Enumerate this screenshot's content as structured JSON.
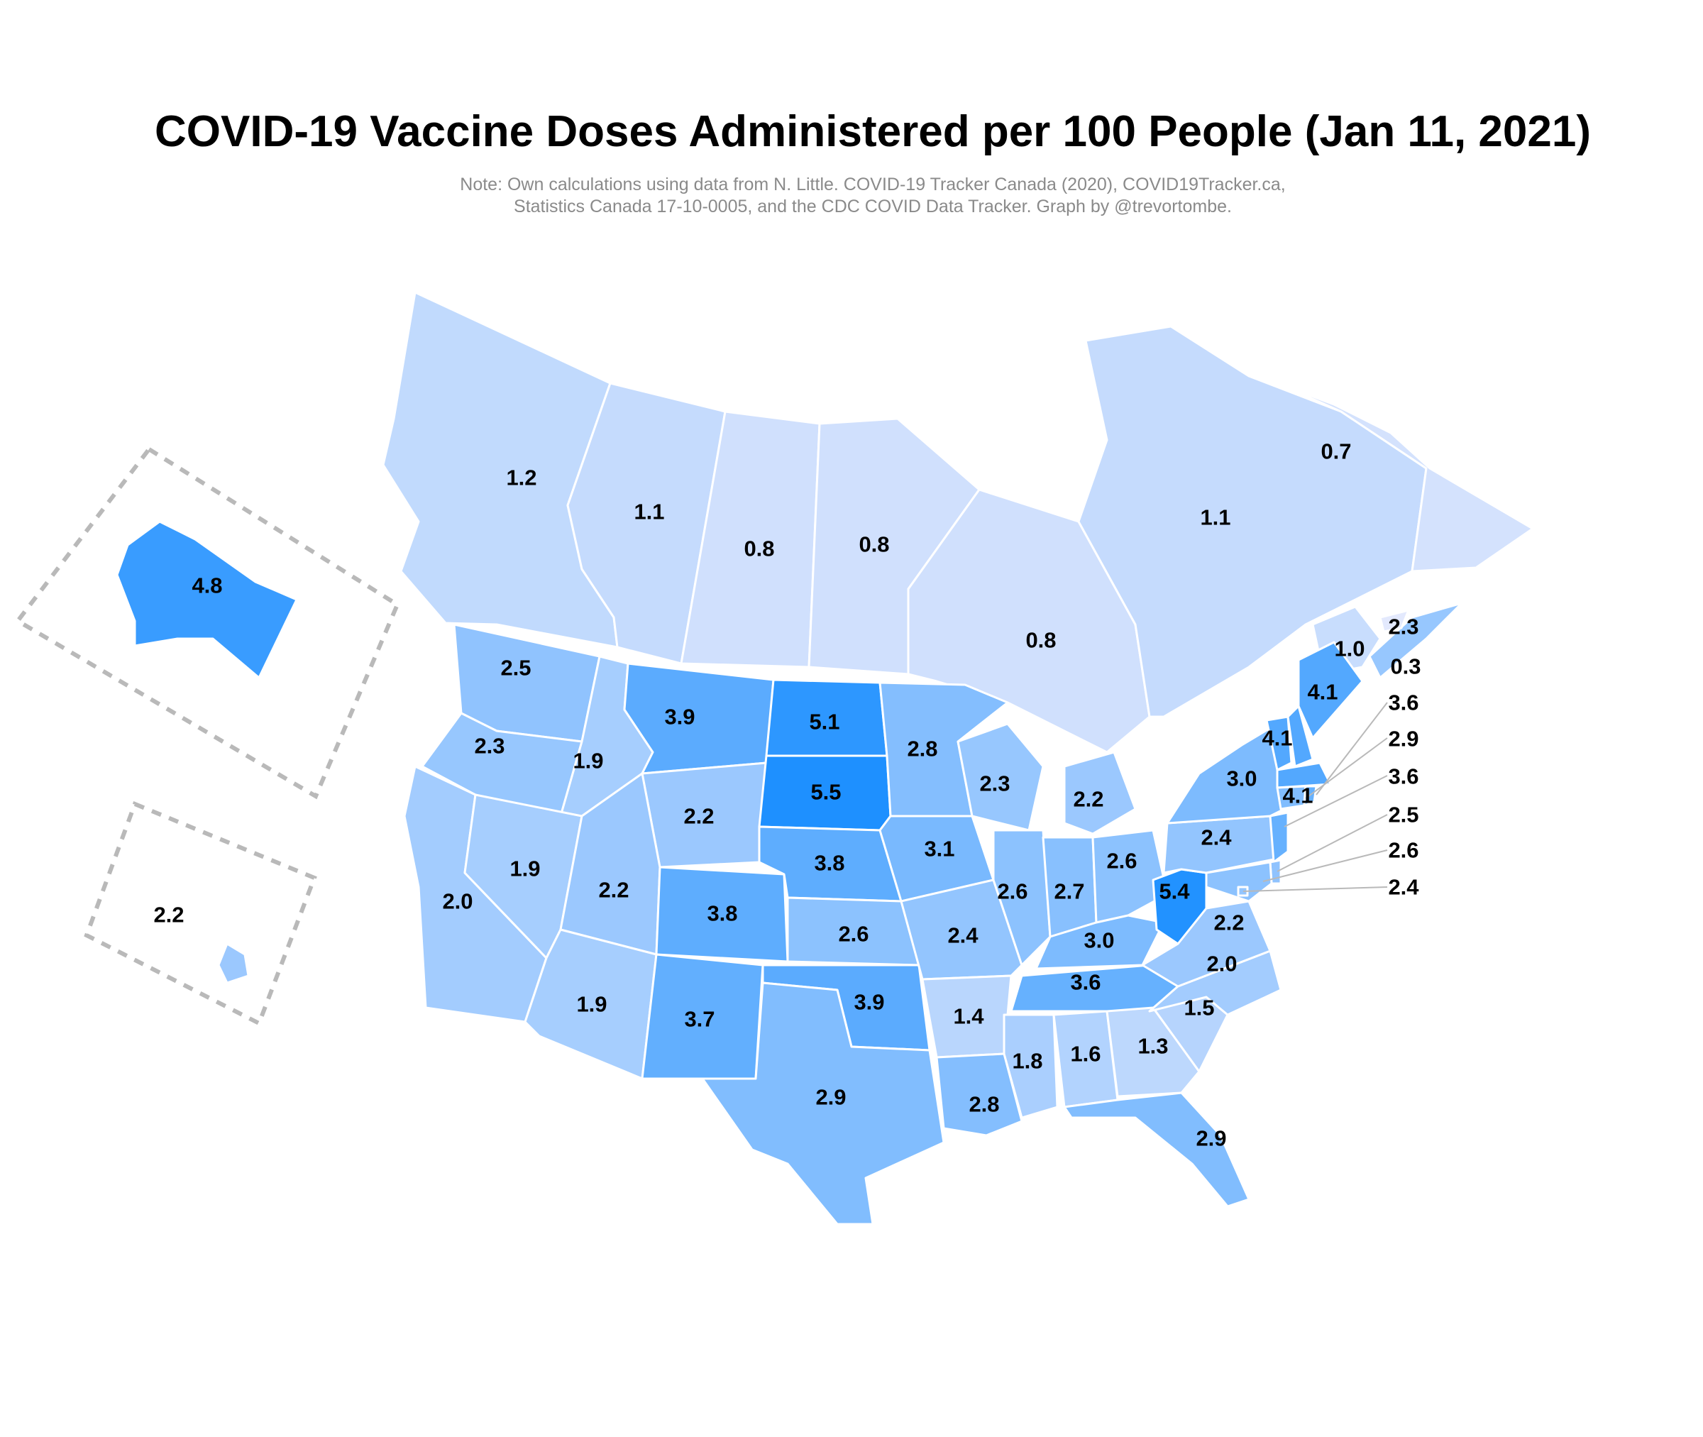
{
  "title": "COVID-19 Vaccine Doses Administered per 100 People (Jan 11, 2021)",
  "note_lines": [
    "Note: Own calculations using data from N. Little. COVID-19 Tracker Canada (2020), COVID19Tracker.ca,",
    "Statistics Canada 17-10-0005, and the CDC COVID Data Tracker. Graph by @trevortombe."
  ],
  "scale": {
    "min_value": 0.3,
    "max_value": 5.5,
    "low_color": "#e3e9fd",
    "high_color": "#1e90ff"
  },
  "regions": [
    {
      "id": "bc",
      "value": "1.2"
    },
    {
      "id": "ab",
      "value": "1.1"
    },
    {
      "id": "sk",
      "value": "0.8"
    },
    {
      "id": "mb",
      "value": "0.8"
    },
    {
      "id": "on",
      "value": "0.8"
    },
    {
      "id": "qc",
      "value": "1.1"
    },
    {
      "id": "nl",
      "value": "0.7"
    },
    {
      "id": "nb",
      "value": "1.0"
    },
    {
      "id": "ns",
      "value": "2.3"
    },
    {
      "id": "pe",
      "value": "0.3"
    },
    {
      "id": "ak",
      "value": "4.8"
    },
    {
      "id": "hi",
      "value": "2.2"
    },
    {
      "id": "wa",
      "value": "2.5"
    },
    {
      "id": "or",
      "value": "2.3"
    },
    {
      "id": "ca",
      "value": "2.0"
    },
    {
      "id": "id",
      "value": "1.9"
    },
    {
      "id": "nv",
      "value": "1.9"
    },
    {
      "id": "mt",
      "value": "3.9"
    },
    {
      "id": "wy",
      "value": "2.2"
    },
    {
      "id": "ut",
      "value": "2.2"
    },
    {
      "id": "az",
      "value": "1.9"
    },
    {
      "id": "co",
      "value": "3.8"
    },
    {
      "id": "nm",
      "value": "3.7"
    },
    {
      "id": "nd",
      "value": "5.1"
    },
    {
      "id": "sd",
      "value": "5.5"
    },
    {
      "id": "ne",
      "value": "3.8"
    },
    {
      "id": "ks",
      "value": "2.6"
    },
    {
      "id": "ok",
      "value": "3.9"
    },
    {
      "id": "tx",
      "value": "2.9"
    },
    {
      "id": "mn",
      "value": "2.8"
    },
    {
      "id": "ia",
      "value": "3.1"
    },
    {
      "id": "mo",
      "value": "2.4"
    },
    {
      "id": "ar",
      "value": "1.4"
    },
    {
      "id": "la",
      "value": "2.8"
    },
    {
      "id": "wi",
      "value": "2.3"
    },
    {
      "id": "il",
      "value": "2.6"
    },
    {
      "id": "mi",
      "value": "2.2"
    },
    {
      "id": "in",
      "value": "2.7"
    },
    {
      "id": "oh",
      "value": "2.6"
    },
    {
      "id": "ky",
      "value": "3.0"
    },
    {
      "id": "tn",
      "value": "3.6"
    },
    {
      "id": "ms",
      "value": "1.8"
    },
    {
      "id": "al",
      "value": "1.6"
    },
    {
      "id": "ga",
      "value": "1.3"
    },
    {
      "id": "fl",
      "value": "2.9"
    },
    {
      "id": "sc",
      "value": "1.5"
    },
    {
      "id": "nc",
      "value": "2.0"
    },
    {
      "id": "va",
      "value": "2.2"
    },
    {
      "id": "wv",
      "value": "5.4"
    },
    {
      "id": "pa",
      "value": "2.4"
    },
    {
      "id": "ny",
      "value": "3.0"
    },
    {
      "id": "vt",
      "value": "4.1"
    },
    {
      "id": "nh",
      "value": "4.1"
    },
    {
      "id": "me",
      "value": "4.1"
    },
    {
      "id": "ma",
      "value": "4.1"
    },
    {
      "id": "ri",
      "value": "3.6"
    },
    {
      "id": "ct",
      "value": "2.9"
    },
    {
      "id": "nj",
      "value": "3.6"
    },
    {
      "id": "de",
      "value": "2.5"
    },
    {
      "id": "md",
      "value": "2.6"
    },
    {
      "id": "dc",
      "value": "2.4"
    }
  ]
}
